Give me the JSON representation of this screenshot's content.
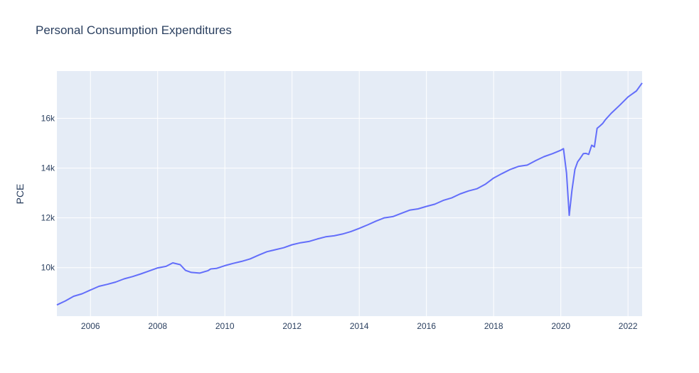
{
  "chart_data": {
    "type": "line",
    "title": "Personal Consumption Expenditures",
    "xlabel": "",
    "ylabel": "PCE",
    "xlim": [
      2005.0,
      2022.42
    ],
    "ylim": [
      8050,
      17900
    ],
    "x_ticks": [
      2006,
      2008,
      2010,
      2012,
      2014,
      2016,
      2018,
      2020,
      2022
    ],
    "y_ticks": [
      10000,
      12000,
      14000,
      16000
    ],
    "y_tick_labels": [
      "10k",
      "12k",
      "14k",
      "16k"
    ],
    "grid": true,
    "background": "#e5ecf6",
    "gridcolor": "#ffffff",
    "series": [
      {
        "color": "#636efa",
        "x": [
          2005.0,
          2005.25,
          2005.5,
          2005.75,
          2006.0,
          2006.25,
          2006.5,
          2006.75,
          2007.0,
          2007.25,
          2007.5,
          2007.75,
          2008.0,
          2008.25,
          2008.45,
          2008.67,
          2008.83,
          2009.0,
          2009.25,
          2009.5,
          2009.58,
          2009.75,
          2010.0,
          2010.25,
          2010.5,
          2010.75,
          2011.0,
          2011.25,
          2011.5,
          2011.75,
          2012.0,
          2012.25,
          2012.5,
          2012.75,
          2013.0,
          2013.25,
          2013.5,
          2013.75,
          2014.0,
          2014.25,
          2014.5,
          2014.75,
          2015.0,
          2015.25,
          2015.5,
          2015.75,
          2016.0,
          2016.25,
          2016.5,
          2016.75,
          2017.0,
          2017.25,
          2017.5,
          2017.75,
          2018.0,
          2018.25,
          2018.5,
          2018.75,
          2019.0,
          2019.25,
          2019.5,
          2019.75,
          2020.0,
          2020.08,
          2020.17,
          2020.25,
          2020.33,
          2020.42,
          2020.5,
          2020.58,
          2020.67,
          2020.75,
          2020.83,
          2020.92,
          2021.0,
          2021.08,
          2021.17,
          2021.25,
          2021.33,
          2021.5,
          2021.75,
          2022.0,
          2022.25,
          2022.42
        ],
        "y": [
          8500,
          8660,
          8850,
          8950,
          9100,
          9250,
          9330,
          9420,
          9550,
          9640,
          9750,
          9870,
          9990,
          10050,
          10190,
          10120,
          9890,
          9810,
          9780,
          9880,
          9950,
          9970,
          10080,
          10170,
          10250,
          10350,
          10500,
          10640,
          10720,
          10800,
          10920,
          11000,
          11050,
          11150,
          11240,
          11280,
          11350,
          11450,
          11580,
          11720,
          11870,
          12000,
          12050,
          12180,
          12310,
          12360,
          12460,
          12550,
          12700,
          12800,
          12960,
          13080,
          13170,
          13350,
          13600,
          13780,
          13950,
          14070,
          14120,
          14300,
          14460,
          14580,
          14720,
          14780,
          13800,
          12100,
          13100,
          13950,
          14250,
          14400,
          14580,
          14590,
          14550,
          14920,
          14850,
          15600,
          15700,
          15800,
          15950,
          16200,
          16520,
          16860,
          17100,
          17420
        ]
      }
    ]
  }
}
